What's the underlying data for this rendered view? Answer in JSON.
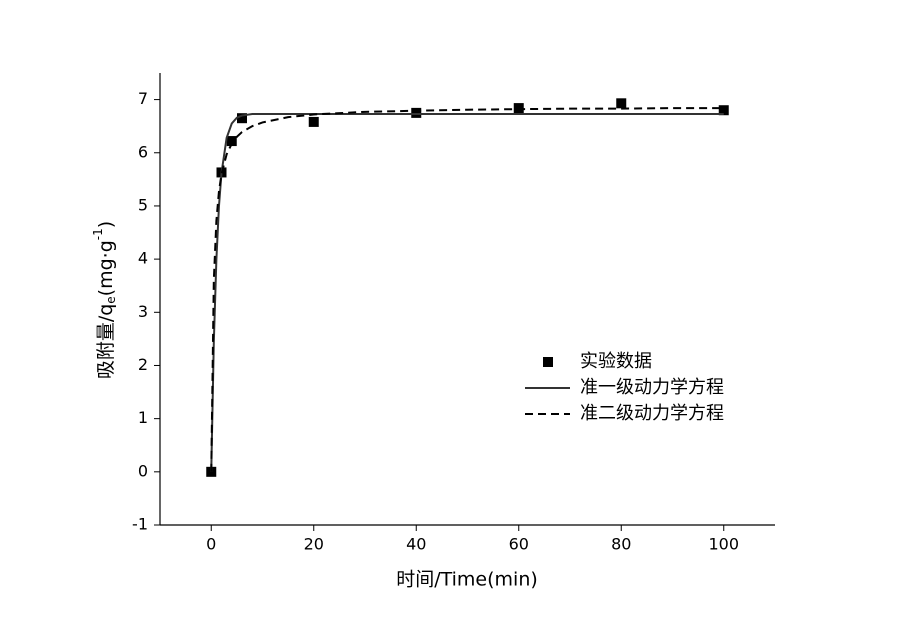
{
  "chart_data": {
    "type": "scatter",
    "xlabel": "时间/Time(min)",
    "ylabel": [
      "吸附量/q",
      "e",
      "(mg·g",
      "-1",
      ")"
    ],
    "xlim": [
      -10,
      110
    ],
    "xticks": [
      0,
      20,
      40,
      60,
      80,
      100
    ],
    "ylim": [
      -1,
      7.5
    ],
    "yticks": [
      -1,
      0,
      1,
      2,
      3,
      4,
      5,
      6,
      7
    ],
    "series": [
      {
        "name": "实验数据",
        "style": "markers",
        "color": "#000000",
        "x": [
          0,
          2,
          4,
          6,
          20,
          40,
          60,
          80,
          100
        ],
        "values": [
          0,
          5.63,
          6.22,
          6.65,
          6.58,
          6.75,
          6.84,
          6.93,
          6.8
        ]
      },
      {
        "name": "准一级动力学方程",
        "style": "solid",
        "color": "#333333",
        "x": [
          0,
          0.5,
          1,
          1.5,
          2,
          3,
          4,
          5,
          6,
          8,
          10,
          15,
          20,
          30,
          40,
          50,
          60,
          70,
          80,
          90,
          100
        ],
        "values": [
          0,
          2.44,
          3.99,
          4.99,
          5.62,
          6.28,
          6.55,
          6.66,
          6.7,
          6.73,
          6.73,
          6.73,
          6.73,
          6.73,
          6.73,
          6.73,
          6.73,
          6.73,
          6.73,
          6.73,
          6.73
        ]
      },
      {
        "name": "准二级动力学方程",
        "style": "dashed",
        "color": "#000000",
        "x": [
          0,
          0.5,
          1,
          1.5,
          2,
          3,
          4,
          5,
          6,
          8,
          10,
          15,
          20,
          30,
          40,
          50,
          60,
          70,
          80,
          90,
          100
        ],
        "values": [
          0,
          3.6,
          4.72,
          5.27,
          5.6,
          5.97,
          6.17,
          6.3,
          6.39,
          6.5,
          6.57,
          6.67,
          6.72,
          6.77,
          6.79,
          6.81,
          6.82,
          6.83,
          6.83,
          6.84,
          6.84
        ]
      }
    ]
  }
}
